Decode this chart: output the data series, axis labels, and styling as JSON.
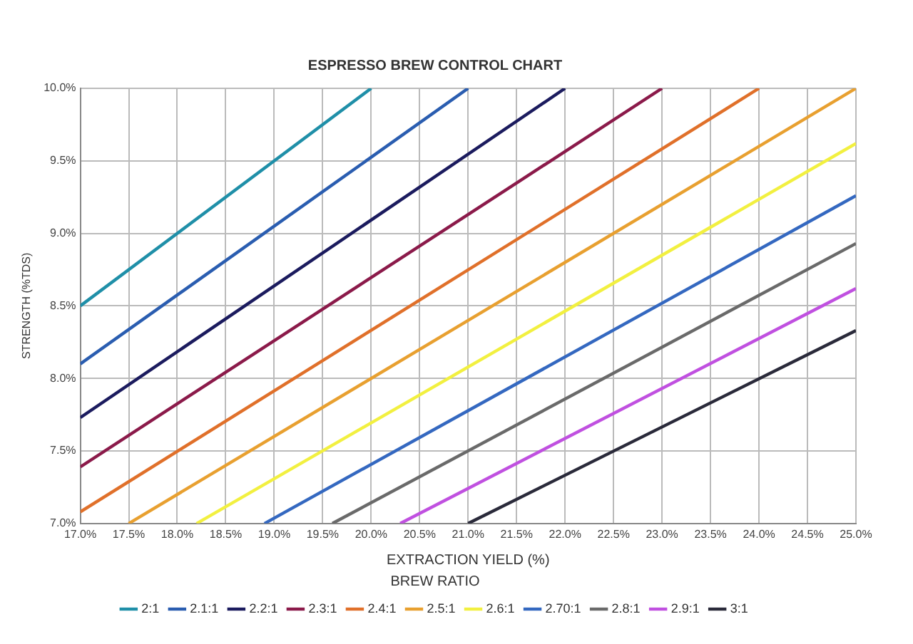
{
  "chart_data": {
    "type": "line",
    "title": "ESPRESSO BREW CONTROL CHART",
    "xlabel": "EXTRACTION YIELD (%)",
    "ylabel": "STRENGTH (%TDS)",
    "legend_title": "BREW RATIO",
    "legend": "bottom",
    "grid": true,
    "marker": "none",
    "line_style": "solid",
    "xlim": [
      17,
      25
    ],
    "ylim": [
      7,
      10
    ],
    "xticks": [
      {
        "value": 17,
        "label": "17.0%"
      },
      {
        "value": 17.5,
        "label": "17.5%"
      },
      {
        "value": 18,
        "label": "18.0%"
      },
      {
        "value": 18.5,
        "label": "18.5%"
      },
      {
        "value": 19,
        "label": "19.0%"
      },
      {
        "value": 19.5,
        "label": "19.5%"
      },
      {
        "value": 20,
        "label": "20.0%"
      },
      {
        "value": 20.5,
        "label": "20.5%"
      },
      {
        "value": 21,
        "label": "21.0%"
      },
      {
        "value": 21.5,
        "label": "21.5%"
      },
      {
        "value": 22,
        "label": "22.0%"
      },
      {
        "value": 22.5,
        "label": "22.5%"
      },
      {
        "value": 23,
        "label": "23.0%"
      },
      {
        "value": 23.5,
        "label": "23.5%"
      },
      {
        "value": 24,
        "label": "24.0%"
      },
      {
        "value": 24.5,
        "label": "24.5%"
      },
      {
        "value": 25,
        "label": "25.0%"
      }
    ],
    "yticks": [
      {
        "value": 7,
        "label": "7.0%"
      },
      {
        "value": 7.5,
        "label": "7.5%"
      },
      {
        "value": 8,
        "label": "8.0%"
      },
      {
        "value": 8.5,
        "label": "8.5%"
      },
      {
        "value": 9,
        "label": "9.0%"
      },
      {
        "value": 9.5,
        "label": "9.5%"
      },
      {
        "value": 10,
        "label": "10.0%"
      }
    ],
    "series": [
      {
        "name": "2:1",
        "color": "#1f8fa8",
        "x": [
          17,
          20
        ],
        "values": [
          8.5,
          10
        ]
      },
      {
        "name": "2.1:1",
        "color": "#2a5db0",
        "x": [
          17,
          21
        ],
        "values": [
          8.1,
          10
        ]
      },
      {
        "name": "2.2:1",
        "color": "#1b1b5e",
        "x": [
          17,
          22
        ],
        "values": [
          7.73,
          10
        ]
      },
      {
        "name": "2.3:1",
        "color": "#8b1a4a",
        "x": [
          17,
          23
        ],
        "values": [
          7.39,
          10
        ]
      },
      {
        "name": "2.4:1",
        "color": "#e0702a",
        "x": [
          17,
          24
        ],
        "values": [
          7.08,
          10
        ]
      },
      {
        "name": "2.5:1",
        "color": "#e8a030",
        "x": [
          17.5,
          25
        ],
        "values": [
          7,
          10
        ]
      },
      {
        "name": "2.6:1",
        "color": "#f2f040",
        "x": [
          18.2,
          25
        ],
        "values": [
          7,
          9.62
        ]
      },
      {
        "name": "2.70:1",
        "color": "#3468c0",
        "x": [
          18.9,
          25
        ],
        "values": [
          7,
          9.26
        ]
      },
      {
        "name": "2.8:1",
        "color": "#6a6a6a",
        "x": [
          19.6,
          25
        ],
        "values": [
          7,
          8.93
        ]
      },
      {
        "name": "2.9:1",
        "color": "#c050e0",
        "x": [
          20.3,
          25
        ],
        "values": [
          7,
          8.62
        ]
      },
      {
        "name": "3:1",
        "color": "#2a2a3a",
        "x": [
          21,
          25
        ],
        "values": [
          7,
          8.33
        ]
      }
    ]
  }
}
